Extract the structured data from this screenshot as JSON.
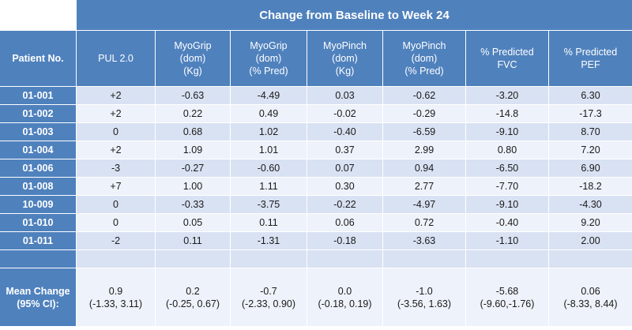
{
  "table": {
    "title": "Change from Baseline to Week 24",
    "columns": [
      [
        "Patient No."
      ],
      [
        "PUL 2.0"
      ],
      [
        "MyoGrip",
        "(dom)",
        "(Kg)"
      ],
      [
        "MyoGrip",
        "(dom)",
        "(% Pred)"
      ],
      [
        "MyoPinch",
        "(dom)",
        "(Kg)"
      ],
      [
        "MyoPinch",
        "(dom)",
        "(% Pred)"
      ],
      [
        "% Predicted",
        "FVC"
      ],
      [
        "% Predicted",
        "PEF"
      ]
    ],
    "rows": [
      [
        "01-001",
        "+2",
        "-0.63",
        "-4.49",
        "0.03",
        "-0.62",
        "-3.20",
        "6.30"
      ],
      [
        "01-002",
        "+2",
        "0.22",
        "0.49",
        "-0.02",
        "-0.29",
        "-14.8",
        "-17.3"
      ],
      [
        "01-003",
        "0",
        "0.68",
        "1.02",
        "-0.40",
        "-6.59",
        "-9.10",
        "8.70"
      ],
      [
        "01-004",
        "+2",
        "1.09",
        "1.01",
        "0.37",
        "2.99",
        "0.80",
        "7.20"
      ],
      [
        "01-006",
        "-3",
        "-0.27",
        "-0.60",
        "0.07",
        "0.94",
        "-6.50",
        "6.90"
      ],
      [
        "01-008",
        "+7",
        "1.00",
        "1.11",
        "0.30",
        "2.77",
        "-7.70",
        "-18.2"
      ],
      [
        "10-009",
        "0",
        "-0.33",
        "-3.75",
        "-0.22",
        "-4.97",
        "-9.10",
        "-4.30"
      ],
      [
        "01-010",
        "0",
        "0.05",
        "0.11",
        "0.06",
        "0.72",
        "-0.40",
        "9.20"
      ],
      [
        "01-011",
        "-2",
        "0.11",
        "-1.31",
        "-0.18",
        "-3.63",
        "-1.10",
        "2.00"
      ]
    ],
    "mean": {
      "label": [
        "Mean Change",
        "(95% CI):"
      ],
      "values": [
        [
          "0.9",
          "(-1.33, 3.11)"
        ],
        [
          "0.2",
          "(-0.25, 0.67)"
        ],
        [
          "-0.7",
          "(-2.33, 0.90)"
        ],
        [
          "0.0",
          "(-0.18, 0.19)"
        ],
        [
          "-1.0",
          "(-3.56, 1.63)"
        ],
        [
          "-5.68",
          "(-9.60,-1.76)"
        ],
        [
          "0.06",
          "(-8.33, 8.44)"
        ]
      ]
    }
  }
}
